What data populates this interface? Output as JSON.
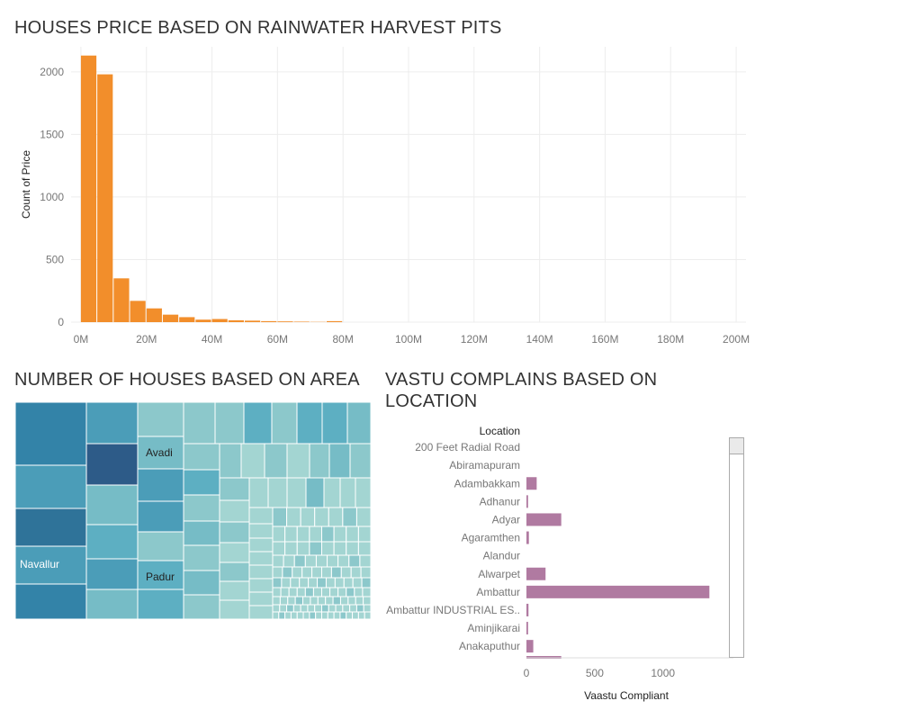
{
  "chart_data": [
    {
      "type": "bar",
      "title": "HOUSES PRICE BASED ON RAINWATER HARVEST PITS",
      "ylabel": "Count of Price",
      "xlabel": "",
      "bin_width": 5000000,
      "bins_start": [
        0,
        5000000,
        10000000,
        15000000,
        20000000,
        25000000,
        30000000,
        35000000,
        40000000,
        45000000,
        50000000,
        55000000,
        60000000,
        65000000,
        70000000,
        75000000
      ],
      "values": [
        2130,
        1980,
        350,
        170,
        110,
        60,
        40,
        20,
        25,
        15,
        12,
        8,
        6,
        4,
        2,
        8
      ],
      "xlim": [
        -3000000,
        203000000
      ],
      "ylim": [
        0,
        2200
      ],
      "xticks": [
        0,
        20000000,
        40000000,
        60000000,
        80000000,
        100000000,
        120000000,
        140000000,
        160000000,
        180000000,
        200000000
      ],
      "xtick_labels": [
        "0M",
        "20M",
        "40M",
        "60M",
        "80M",
        "100M",
        "120M",
        "140M",
        "160M",
        "180M",
        "200M"
      ],
      "yticks": [
        0,
        500,
        1000,
        1500,
        2000
      ],
      "ytick_labels": [
        "0",
        "500",
        "1000",
        "1500",
        "2000"
      ],
      "colors": {
        "bar": "#F28E2B",
        "grid": "#ededed"
      }
    },
    {
      "type": "treemap",
      "title": "NUMBER OF HOUSES BASED ON AREA",
      "labels": [
        "Navallur",
        "Avadi",
        "Padur"
      ]
    },
    {
      "type": "bar",
      "orientation": "horizontal",
      "title": "VASTU COMPLAINS BASED ON LOCATION",
      "ylabel": "Location",
      "xlabel": "Vaastu Compliant",
      "categories": [
        "200 Feet Radial Road",
        "Abiramapuram",
        "Adambakkam",
        "Adhanur",
        "Adyar",
        "Agaramthen",
        "Alandur",
        "Alwarpet",
        "Ambattur",
        "Ambattur INDUSTRIAL ES..",
        "Aminjikarai",
        "Anakaputhur"
      ],
      "values": [
        0,
        0,
        75,
        12,
        255,
        18,
        0,
        140,
        1340,
        15,
        12,
        50
      ],
      "xlim": [
        0,
        1450
      ],
      "xticks": [
        0,
        500,
        1000
      ],
      "xtick_labels": [
        "0",
        "500",
        "1000"
      ],
      "colors": {
        "bar": "#B07AA1"
      }
    }
  ]
}
